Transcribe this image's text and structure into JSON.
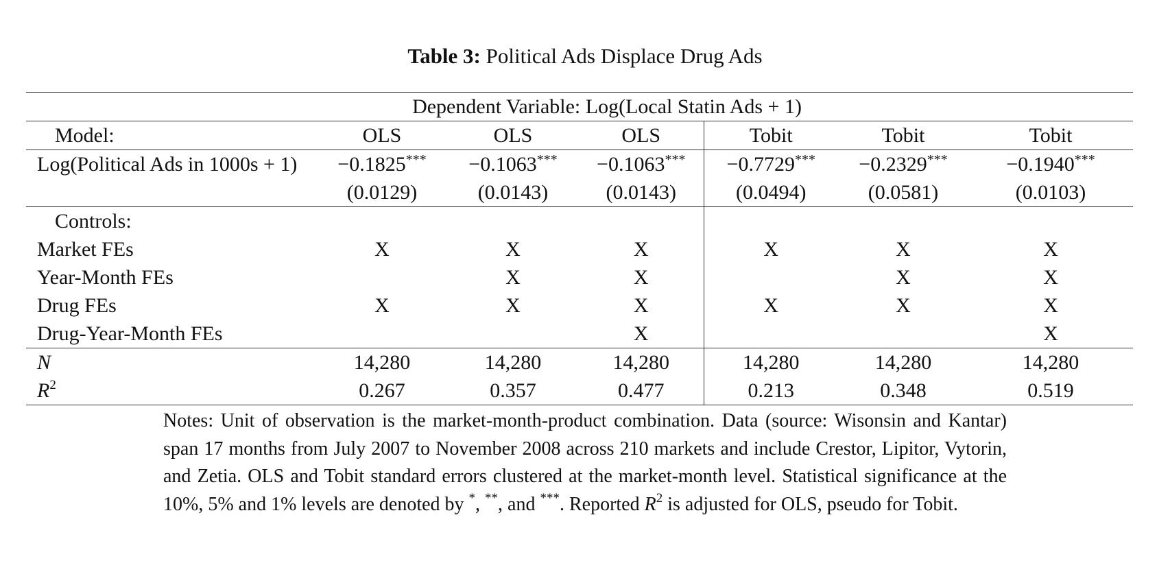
{
  "caption": {
    "label": "Table 3:",
    "title": "Political Ads Displace Drug Ads"
  },
  "table": {
    "dependent_variable": "Dependent Variable: Log(Local Statin Ads + 1)",
    "model_label": "Model:",
    "models": [
      "OLS",
      "OLS",
      "OLS",
      "Tobit",
      "Tobit",
      "Tobit"
    ],
    "regressor_label": "Log(Political Ads in 1000s + 1)",
    "coefficients": [
      "−0.1825",
      "−0.1063",
      "−0.1063",
      "−0.7729",
      "−0.2329",
      "−0.1940"
    ],
    "stars": [
      "***",
      "***",
      "***",
      "***",
      "***",
      "***"
    ],
    "std_errors": [
      "(0.0129)",
      "(0.0143)",
      "(0.0143)",
      "(0.0494)",
      "(0.0581)",
      "(0.0103)"
    ],
    "controls_label": "Controls:",
    "controls": [
      {
        "label": "Market FEs",
        "marks": [
          "X",
          "X",
          "X",
          "X",
          "X",
          "X"
        ]
      },
      {
        "label": "Year-Month FEs",
        "marks": [
          "",
          "X",
          "X",
          "",
          "X",
          "X"
        ]
      },
      {
        "label": "Drug FEs",
        "marks": [
          "X",
          "X",
          "X",
          "X",
          "X",
          "X"
        ]
      },
      {
        "label": "Drug-Year-Month FEs",
        "marks": [
          "",
          "",
          "X",
          "",
          "",
          "X"
        ]
      }
    ],
    "n_label": "N",
    "n_values": [
      "14,280",
      "14,280",
      "14,280",
      "14,280",
      "14,280",
      "14,280"
    ],
    "r2_label": "R",
    "r2_sup": "2",
    "r2_values": [
      "0.267",
      "0.357",
      "0.477",
      "0.213",
      "0.348",
      "0.519"
    ]
  },
  "notes": {
    "main": "Notes: Unit of observation is the market-month-product combination. Data (source: Wisonsin and Kantar) span 17 months from July 2007 to November 2008 across 210 markets and include Crestor, Lipitor, Vytorin, and Zetia. OLS and Tobit standard errors clustered at the market-month level. Statistical significance at the 10%, 5% and 1% levels are denoted by ",
    "star1": "*",
    "sep1": ", ",
    "star2": "**",
    "sep2": ", and ",
    "star3": "***",
    "after_stars": ". Reported ",
    "r_letter": "R",
    "r_sup": "2",
    "tail": " is adjusted for OLS, pseudo for Tobit."
  }
}
